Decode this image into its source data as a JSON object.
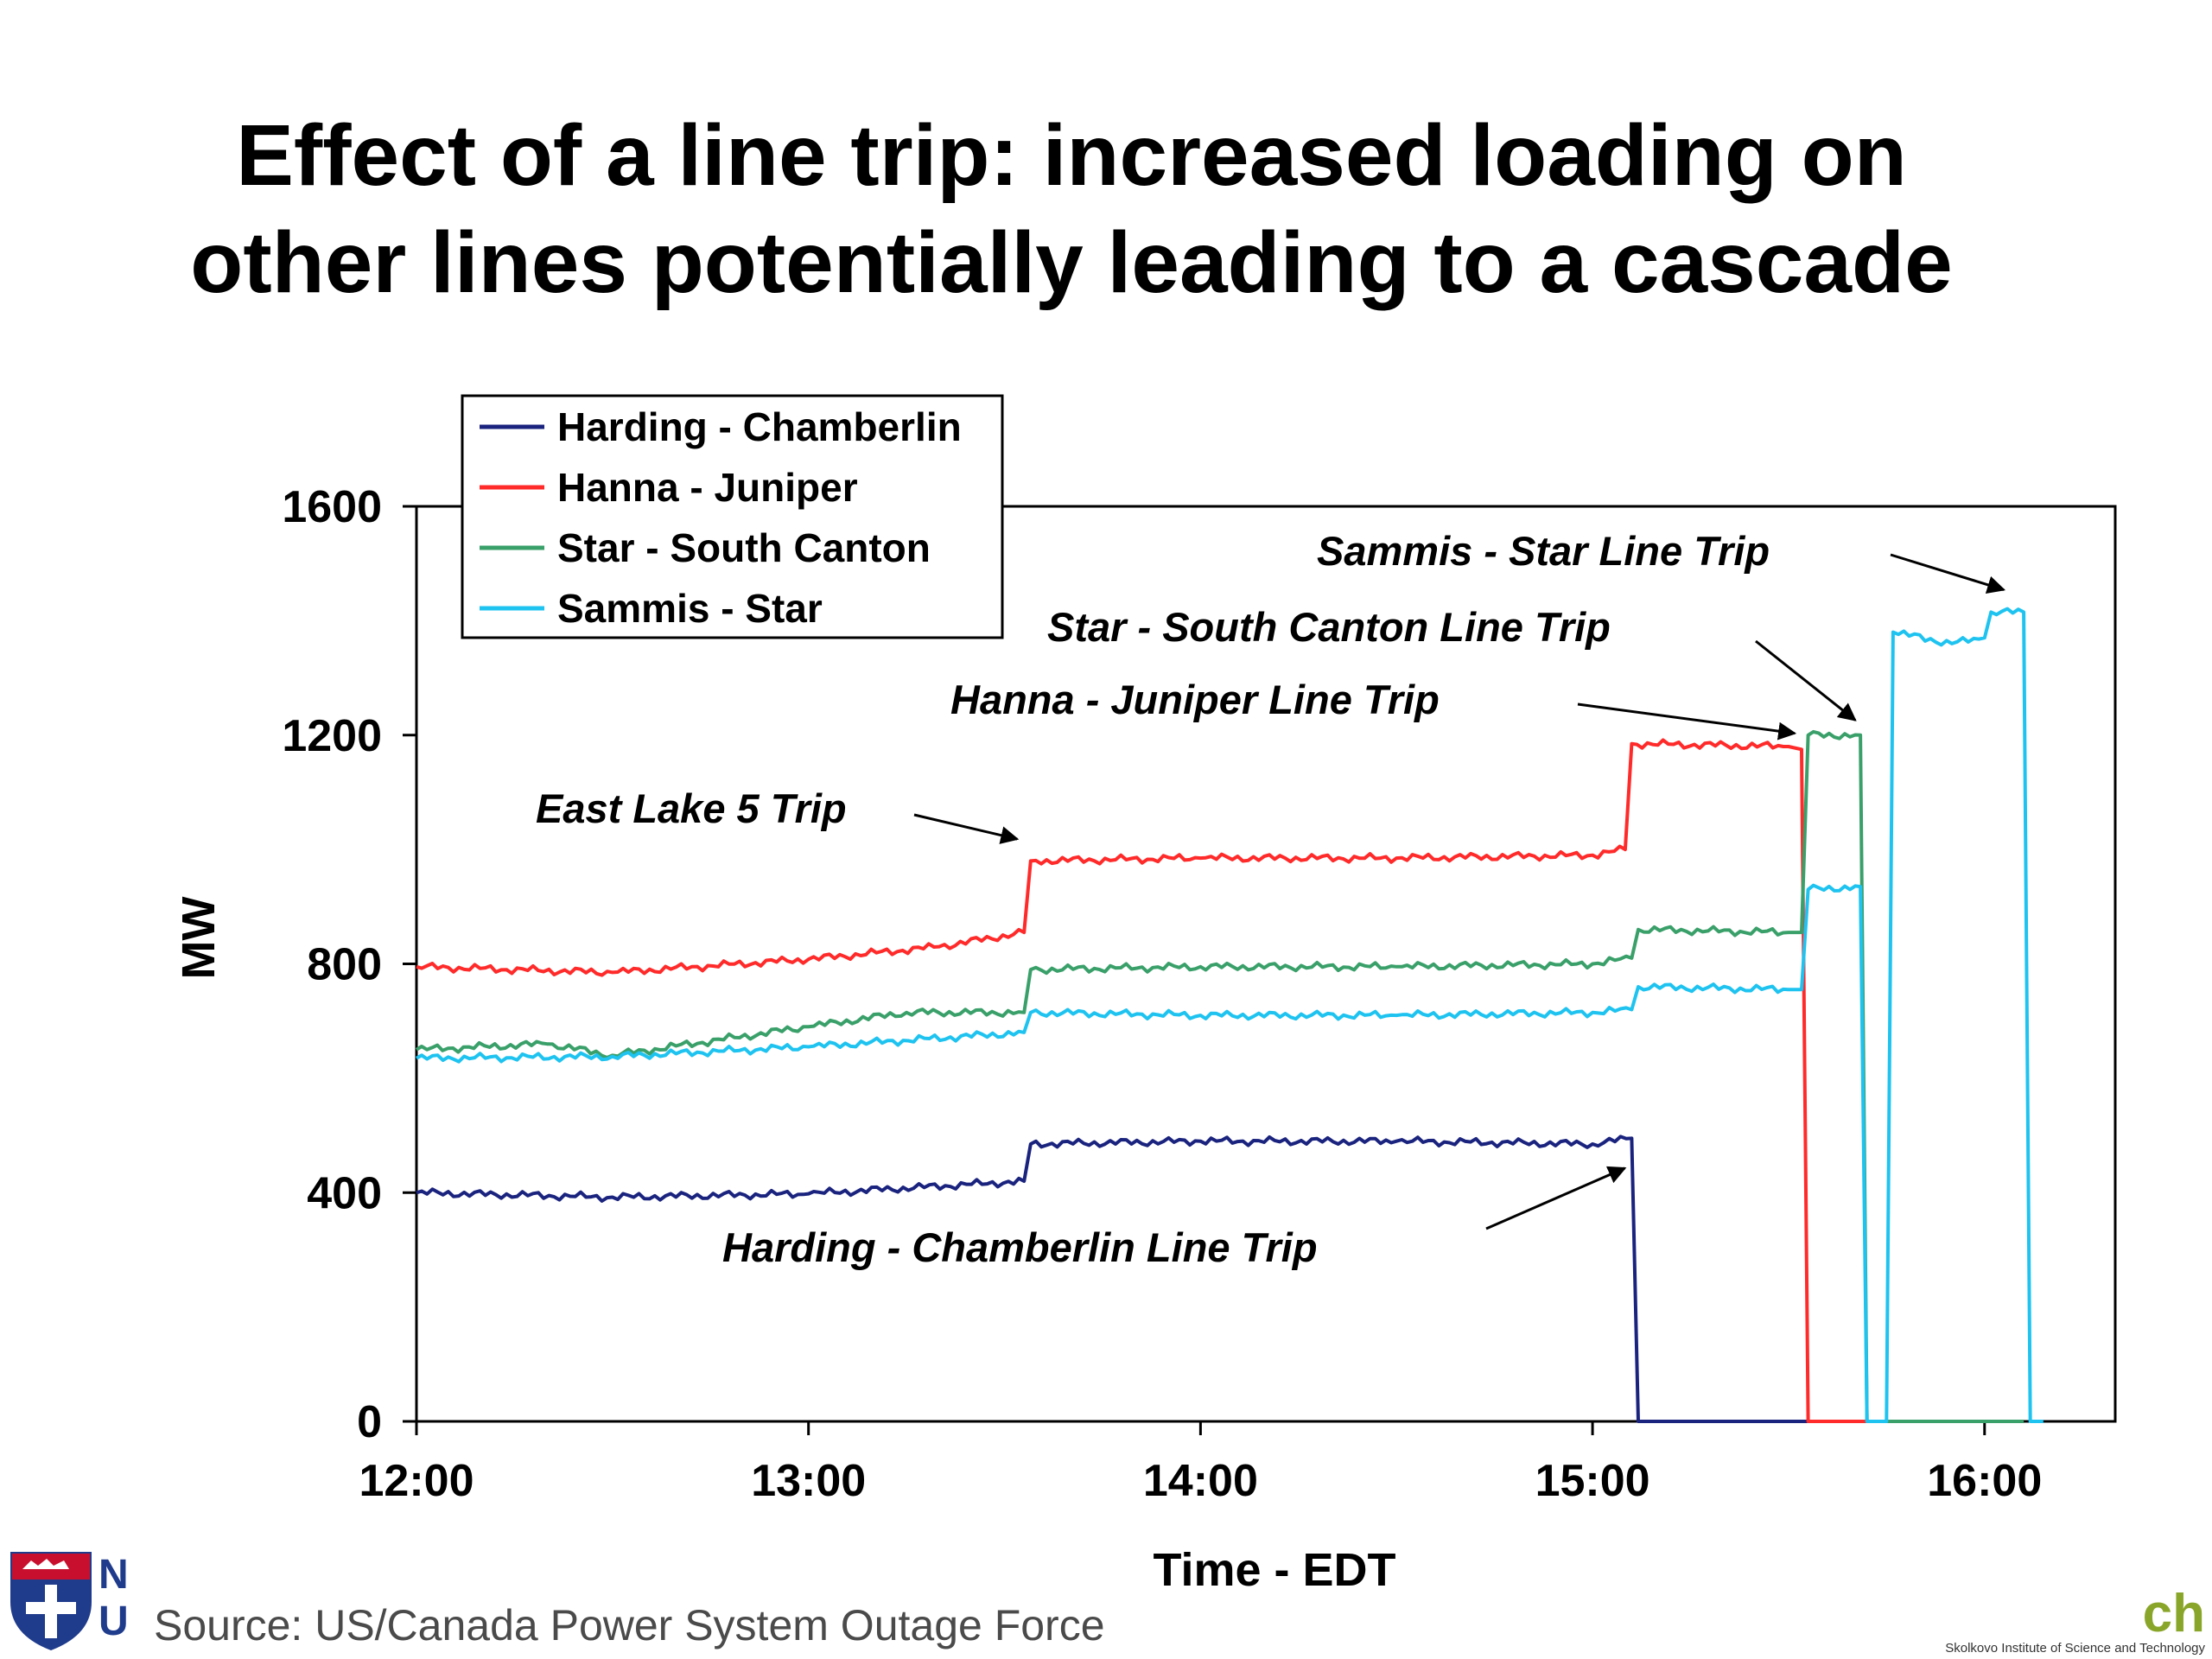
{
  "slide": {
    "title_line1": "Effect of a line trip: increased loading on",
    "title_line2": "other lines potentially leading to a cascade",
    "source": "Source: US/Canada Power System Outage Force",
    "logo_right_text": "ch",
    "logo_right_tagline": "Skolkovo Institute of Science and Technology"
  },
  "chart_data": {
    "type": "line",
    "xlabel": "Time - EDT",
    "ylabel": "MW",
    "xlim": [
      "12:00",
      "16:20"
    ],
    "ylim": [
      0,
      1600
    ],
    "x_ticks": [
      "12:00",
      "13:00",
      "14:00",
      "15:00",
      "16:00"
    ],
    "y_ticks": [
      0,
      400,
      800,
      1200,
      1600
    ],
    "legend_position": "top-left",
    "grid": false,
    "series": [
      {
        "name": "Harding - Chamberlin",
        "color": "#1a237e",
        "points": [
          [
            "12:00",
            400
          ],
          [
            "12:30",
            392
          ],
          [
            "13:00",
            398
          ],
          [
            "13:33",
            420
          ],
          [
            "13:34",
            485
          ],
          [
            "14:00",
            490
          ],
          [
            "14:30",
            490
          ],
          [
            "15:00",
            485
          ],
          [
            "15:06",
            495
          ],
          [
            "15:07",
            0
          ],
          [
            "16:00",
            0
          ],
          [
            "16:06",
            0
          ]
        ]
      },
      {
        "name": "Hanna - Juniper",
        "color": "#ff2a2a",
        "points": [
          [
            "12:00",
            795
          ],
          [
            "12:30",
            785
          ],
          [
            "13:00",
            808
          ],
          [
            "13:20",
            830
          ],
          [
            "13:33",
            855
          ],
          [
            "13:34",
            980
          ],
          [
            "14:00",
            985
          ],
          [
            "14:30",
            985
          ],
          [
            "15:00",
            990
          ],
          [
            "15:05",
            1000
          ],
          [
            "15:06",
            1185
          ],
          [
            "15:30",
            1180
          ],
          [
            "15:32",
            1175
          ],
          [
            "15:33",
            0
          ],
          [
            "15:42",
            0
          ]
        ]
      },
      {
        "name": "Star - South Canton",
        "color": "#3aa06a",
        "points": [
          [
            "12:00",
            650
          ],
          [
            "12:20",
            660
          ],
          [
            "12:30",
            640
          ],
          [
            "13:00",
            690
          ],
          [
            "13:15",
            715
          ],
          [
            "13:33",
            715
          ],
          [
            "13:34",
            790
          ],
          [
            "14:00",
            795
          ],
          [
            "14:30",
            795
          ],
          [
            "15:00",
            800
          ],
          [
            "15:06",
            810
          ],
          [
            "15:07",
            860
          ],
          [
            "15:30",
            855
          ],
          [
            "15:32",
            855
          ],
          [
            "15:33",
            1200
          ],
          [
            "15:41",
            1200
          ],
          [
            "15:42",
            0
          ],
          [
            "16:06",
            0
          ]
        ]
      },
      {
        "name": "Sammis - Star",
        "color": "#1ec3f0",
        "points": [
          [
            "12:00",
            635
          ],
          [
            "12:30",
            638
          ],
          [
            "13:00",
            655
          ],
          [
            "13:33",
            680
          ],
          [
            "13:34",
            715
          ],
          [
            "14:00",
            710
          ],
          [
            "14:30",
            710
          ],
          [
            "15:00",
            715
          ],
          [
            "15:06",
            720
          ],
          [
            "15:07",
            760
          ],
          [
            "15:30",
            755
          ],
          [
            "15:32",
            755
          ],
          [
            "15:33",
            930
          ],
          [
            "15:41",
            935
          ],
          [
            "15:42",
            0
          ],
          [
            "15:45",
            0
          ],
          [
            "15:46",
            1380
          ],
          [
            "15:55",
            1360
          ],
          [
            "16:00",
            1370
          ],
          [
            "16:01",
            1415
          ],
          [
            "16:06",
            1415
          ],
          [
            "16:07",
            0
          ],
          [
            "16:09",
            0
          ]
        ]
      }
    ],
    "annotations": [
      {
        "text": "East Lake 5 Trip",
        "at": [
          "13:33",
          985
        ]
      },
      {
        "text": "Hanna - Juniper Line Trip",
        "at": [
          "15:32",
          1185
        ]
      },
      {
        "text": "Star - South Canton Line Trip",
        "at": [
          "15:41",
          1205
        ]
      },
      {
        "text": "Sammis - Star Line Trip",
        "at": [
          "16:04",
          1430
        ]
      },
      {
        "text": "Harding - Chamberlin Line Trip",
        "at": [
          "15:06",
          470
        ]
      }
    ]
  }
}
